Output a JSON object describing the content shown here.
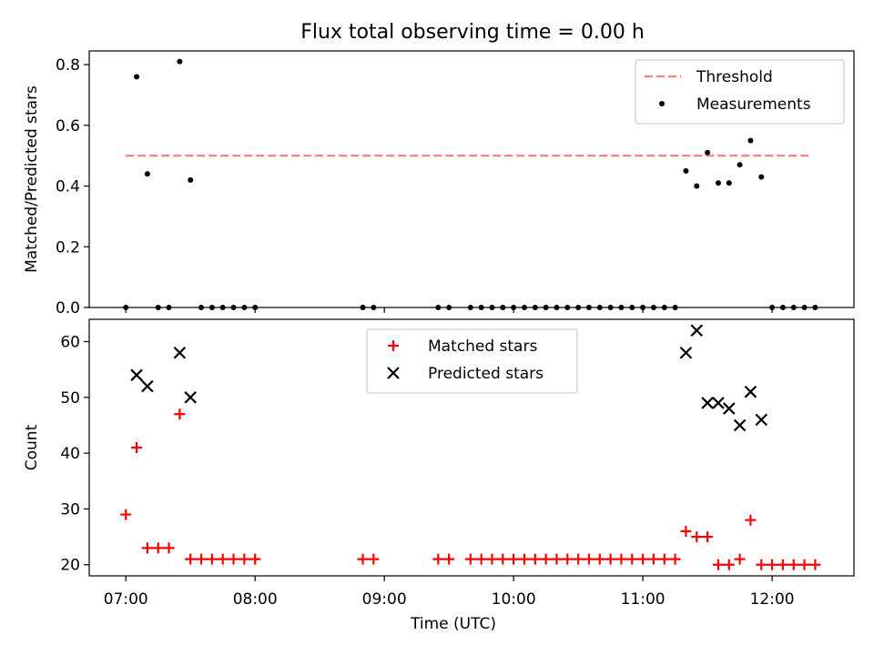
{
  "title": "Flux total observing time = 0.00 h",
  "colors": {
    "threshold": "#ff7f7f",
    "measurements": "#000000",
    "matched": "#ff0000",
    "predicted": "#000000"
  },
  "chart_data": [
    {
      "type": "scatter",
      "panel": "top",
      "xlabel": "",
      "ylabel": "Matched/Predicted stars",
      "xlim": [
        "06:43",
        "12:38"
      ],
      "ylim": [
        0,
        0.8
      ],
      "yticks": [
        "0.0",
        "0.2",
        "0.4",
        "0.6",
        "0.8"
      ],
      "xticks": [
        "07:00",
        "08:00",
        "09:00",
        "10:00",
        "11:00",
        "12:00"
      ],
      "show_xticklabels": false,
      "legend_position": "upper right",
      "threshold": {
        "name": "Threshold",
        "y": 0.5,
        "x_start": "07:00",
        "x_end": "12:18",
        "style": "dashed"
      },
      "series": [
        {
          "name": "Measurements",
          "marker": "dot",
          "points": [
            [
              "07:00",
              0.0
            ],
            [
              "07:05",
              0.76
            ],
            [
              "07:10",
              0.44
            ],
            [
              "07:15",
              0.0
            ],
            [
              "07:20",
              0.0
            ],
            [
              "07:25",
              0.81
            ],
            [
              "07:30",
              0.42
            ],
            [
              "07:35",
              0.0
            ],
            [
              "07:40",
              0.0
            ],
            [
              "07:45",
              0.0
            ],
            [
              "07:50",
              0.0
            ],
            [
              "07:55",
              0.0
            ],
            [
              "08:00",
              0.0
            ],
            [
              "08:50",
              0.0
            ],
            [
              "08:55",
              0.0
            ],
            [
              "09:25",
              0.0
            ],
            [
              "09:30",
              0.0
            ],
            [
              "09:40",
              0.0
            ],
            [
              "09:45",
              0.0
            ],
            [
              "09:50",
              0.0
            ],
            [
              "09:55",
              0.0
            ],
            [
              "10:00",
              0.0
            ],
            [
              "10:05",
              0.0
            ],
            [
              "10:10",
              0.0
            ],
            [
              "10:15",
              0.0
            ],
            [
              "10:20",
              0.0
            ],
            [
              "10:25",
              0.0
            ],
            [
              "10:30",
              0.0
            ],
            [
              "10:35",
              0.0
            ],
            [
              "10:40",
              0.0
            ],
            [
              "10:45",
              0.0
            ],
            [
              "10:50",
              0.0
            ],
            [
              "10:55",
              0.0
            ],
            [
              "11:00",
              0.0
            ],
            [
              "11:05",
              0.0
            ],
            [
              "11:10",
              0.0
            ],
            [
              "11:15",
              0.0
            ],
            [
              "11:20",
              0.45
            ],
            [
              "11:25",
              0.4
            ],
            [
              "11:30",
              0.51
            ],
            [
              "11:35",
              0.41
            ],
            [
              "11:40",
              0.41
            ],
            [
              "11:45",
              0.47
            ],
            [
              "11:50",
              0.55
            ],
            [
              "11:55",
              0.43
            ],
            [
              "12:00",
              0.0
            ],
            [
              "12:05",
              0.0
            ],
            [
              "12:10",
              0.0
            ],
            [
              "12:15",
              0.0
            ],
            [
              "12:20",
              0.0
            ]
          ]
        }
      ]
    },
    {
      "type": "scatter",
      "panel": "bottom",
      "xlabel": "Time (UTC)",
      "ylabel": "Count",
      "xlim": [
        "06:43",
        "12:38"
      ],
      "ylim": [
        18,
        64
      ],
      "yticks": [
        "20",
        "30",
        "40",
        "50",
        "60"
      ],
      "xticks": [
        "07:00",
        "08:00",
        "09:00",
        "10:00",
        "11:00",
        "12:00"
      ],
      "legend_position": "upper center",
      "series": [
        {
          "name": "Matched stars",
          "marker": "plus",
          "points": [
            [
              "07:00",
              29
            ],
            [
              "07:05",
              41
            ],
            [
              "07:10",
              23
            ],
            [
              "07:15",
              23
            ],
            [
              "07:20",
              23
            ],
            [
              "07:25",
              47
            ],
            [
              "07:30",
              21
            ],
            [
              "07:35",
              21
            ],
            [
              "07:40",
              21
            ],
            [
              "07:45",
              21
            ],
            [
              "07:50",
              21
            ],
            [
              "07:55",
              21
            ],
            [
              "08:00",
              21
            ],
            [
              "08:50",
              21
            ],
            [
              "08:55",
              21
            ],
            [
              "09:25",
              21
            ],
            [
              "09:30",
              21
            ],
            [
              "09:40",
              21
            ],
            [
              "09:45",
              21
            ],
            [
              "09:50",
              21
            ],
            [
              "09:55",
              21
            ],
            [
              "10:00",
              21
            ],
            [
              "10:05",
              21
            ],
            [
              "10:10",
              21
            ],
            [
              "10:15",
              21
            ],
            [
              "10:20",
              21
            ],
            [
              "10:25",
              21
            ],
            [
              "10:30",
              21
            ],
            [
              "10:35",
              21
            ],
            [
              "10:40",
              21
            ],
            [
              "10:45",
              21
            ],
            [
              "10:50",
              21
            ],
            [
              "10:55",
              21
            ],
            [
              "11:00",
              21
            ],
            [
              "11:05",
              21
            ],
            [
              "11:10",
              21
            ],
            [
              "11:15",
              21
            ],
            [
              "11:20",
              26
            ],
            [
              "11:25",
              25
            ],
            [
              "11:30",
              25
            ],
            [
              "11:35",
              20
            ],
            [
              "11:40",
              20
            ],
            [
              "11:45",
              21
            ],
            [
              "11:50",
              28
            ],
            [
              "11:55",
              20
            ],
            [
              "12:00",
              20
            ],
            [
              "12:05",
              20
            ],
            [
              "12:10",
              20
            ],
            [
              "12:15",
              20
            ],
            [
              "12:20",
              20
            ]
          ]
        },
        {
          "name": "Predicted stars",
          "marker": "x",
          "points": [
            [
              "07:05",
              54
            ],
            [
              "07:10",
              52
            ],
            [
              "07:25",
              58
            ],
            [
              "07:30",
              50
            ],
            [
              "11:20",
              58
            ],
            [
              "11:25",
              62
            ],
            [
              "11:30",
              49
            ],
            [
              "11:35",
              49
            ],
            [
              "11:40",
              48
            ],
            [
              "11:45",
              45
            ],
            [
              "11:50",
              51
            ],
            [
              "11:55",
              46
            ]
          ]
        }
      ]
    }
  ]
}
